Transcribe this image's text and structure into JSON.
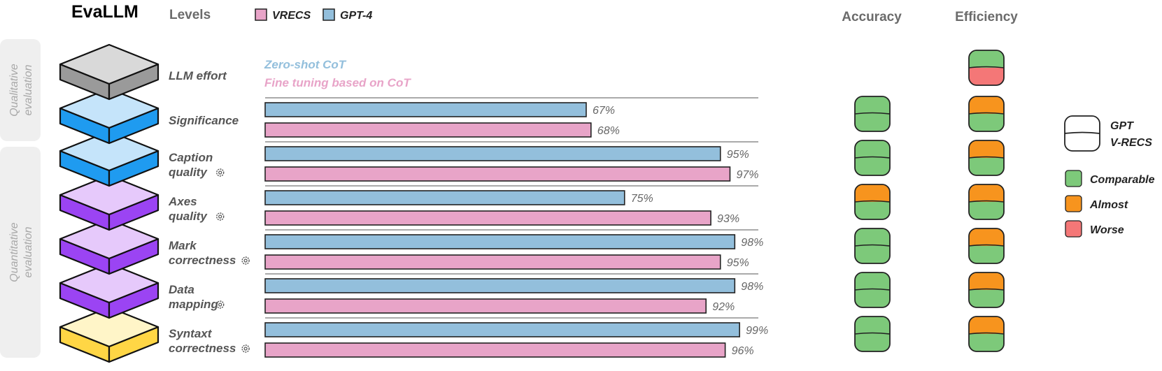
{
  "title": "EvaLLM",
  "header": {
    "levels_label": "Levels",
    "accuracy_label": "Accuracy",
    "efficiency_label": "Efficiency"
  },
  "legend_models": [
    {
      "name": "VRECS",
      "color": "#e8a4c8"
    },
    {
      "name": "GPT-4",
      "color": "#93bfdc"
    }
  ],
  "groups": [
    {
      "label_lines": [
        "Qualitative",
        "evaluation"
      ]
    },
    {
      "label_lines": [
        "Quantitative",
        "evaluation"
      ]
    }
  ],
  "notes": {
    "zero_shot": "Zero-shot CoT",
    "fine_tuning": "Fine tuning based on CoT"
  },
  "layer_colors": [
    {
      "top": "#d9d9d9",
      "side": "#9a9a9a"
    },
    {
      "top": "#c5e4fa",
      "side": "#1f9bf0"
    },
    {
      "top": "#c5e4fa",
      "side": "#1f9bf0"
    },
    {
      "top": "#e6c9fb",
      "side": "#9b44f3"
    },
    {
      "top": "#e6c9fb",
      "side": "#9b44f3"
    },
    {
      "top": "#e6c9fb",
      "side": "#9b44f3"
    },
    {
      "top": "#fff5c8",
      "side": "#ffd645"
    }
  ],
  "status_legend": {
    "gpt": "GPT",
    "vrecs": "V-RECS",
    "items": [
      {
        "name": "Comparable",
        "color": "#7dc97a"
      },
      {
        "name": "Almost",
        "color": "#f7941e"
      },
      {
        "name": "Worse",
        "color": "#f47777"
      }
    ]
  },
  "chart_data": {
    "type": "bar",
    "orientation": "horizontal",
    "xlim": [
      0,
      100
    ],
    "value_suffix": "%",
    "categories": [
      {
        "lines": [
          "Significance"
        ],
        "gear": false
      },
      {
        "lines": [
          "Caption",
          "quality"
        ],
        "gear": true
      },
      {
        "lines": [
          "Axes",
          "quality"
        ],
        "gear": true
      },
      {
        "lines": [
          "Mark",
          "correctness"
        ],
        "gear": true
      },
      {
        "lines": [
          "Data",
          "mapping"
        ],
        "gear": true
      },
      {
        "lines": [
          "Syntaxt",
          "correctness"
        ],
        "gear": true
      }
    ],
    "series": [
      {
        "name": "GPT-4",
        "color": "#93bfdc",
        "values": [
          67,
          95,
          75,
          98,
          98,
          99
        ]
      },
      {
        "name": "VRECS",
        "color": "#e8a4c8",
        "values": [
          68,
          97,
          93,
          95,
          92,
          96
        ]
      }
    ],
    "effort_label": "LLM effort",
    "accuracy": [
      [
        "Comparable",
        "Comparable"
      ],
      [
        "Comparable",
        "Comparable"
      ],
      [
        "Almost",
        "Comparable"
      ],
      [
        "Comparable",
        "Comparable"
      ],
      [
        "Comparable",
        "Comparable"
      ],
      [
        "Comparable",
        "Comparable"
      ]
    ],
    "efficiency": [
      [
        "Comparable",
        "Worse"
      ],
      [
        "Almost",
        "Comparable"
      ],
      [
        "Almost",
        "Comparable"
      ],
      [
        "Almost",
        "Comparable"
      ],
      [
        "Almost",
        "Comparable"
      ],
      [
        "Almost",
        "Comparable"
      ],
      [
        "Almost",
        "Comparable"
      ]
    ]
  }
}
